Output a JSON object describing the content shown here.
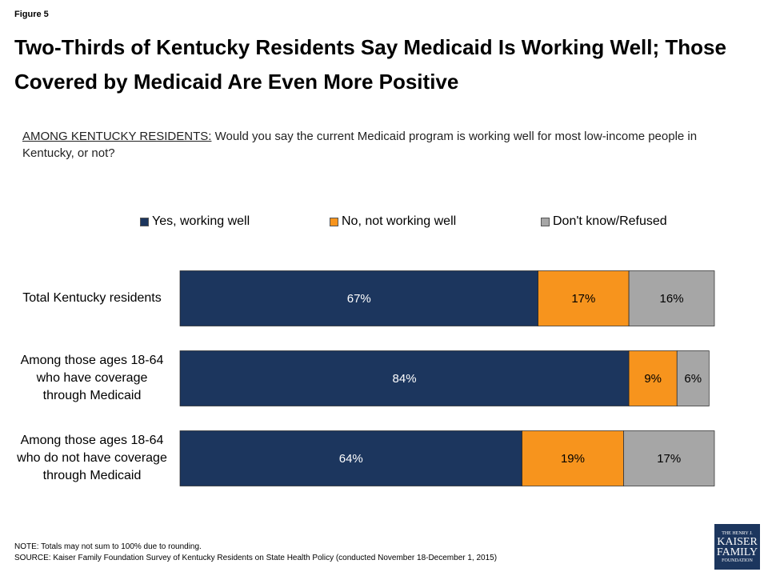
{
  "figure_label": "Figure 5",
  "chart_data": {
    "type": "stacked-bar-horizontal",
    "title": "Two-Thirds of Kentucky Residents Say Medicaid Is Working Well; Those Covered by Medicaid Are Even More Positive",
    "subtitle_label": "AMONG KENTUCKY RESIDENTS:",
    "subtitle": "Would you say the current Medicaid program is working well for most low-income people in Kentucky, or not?",
    "categories": [
      "Total Kentucky residents",
      "Among those ages 18-64 who have coverage through Medicaid",
      "Among those ages 18-64 who do not have coverage through Medicaid"
    ],
    "series": [
      {
        "name": "Yes, working well",
        "color": "#1c365e",
        "values": [
          67,
          84,
          64
        ],
        "value_labels": [
          "67%",
          "84%",
          "64%"
        ]
      },
      {
        "name": "No, not working well",
        "color": "#f7941d",
        "values": [
          17,
          9,
          19
        ],
        "value_labels": [
          "17%",
          "9%",
          "19%"
        ]
      },
      {
        "name": "Don't know/Refused",
        "color": "#a6a6a6",
        "values": [
          16,
          6,
          17
        ],
        "value_labels": [
          "16%",
          "6%",
          "17%"
        ]
      }
    ]
  },
  "note": "NOTE: Totals may not sum to 100% due to rounding.",
  "source": "SOURCE: Kaiser Family Foundation Survey of Kentucky Residents on State Health Policy (conducted November 18-December 1, 2015)",
  "logo": [
    "THE HENRY J.",
    "KAISER",
    "FAMILY",
    "FOUNDATION"
  ]
}
